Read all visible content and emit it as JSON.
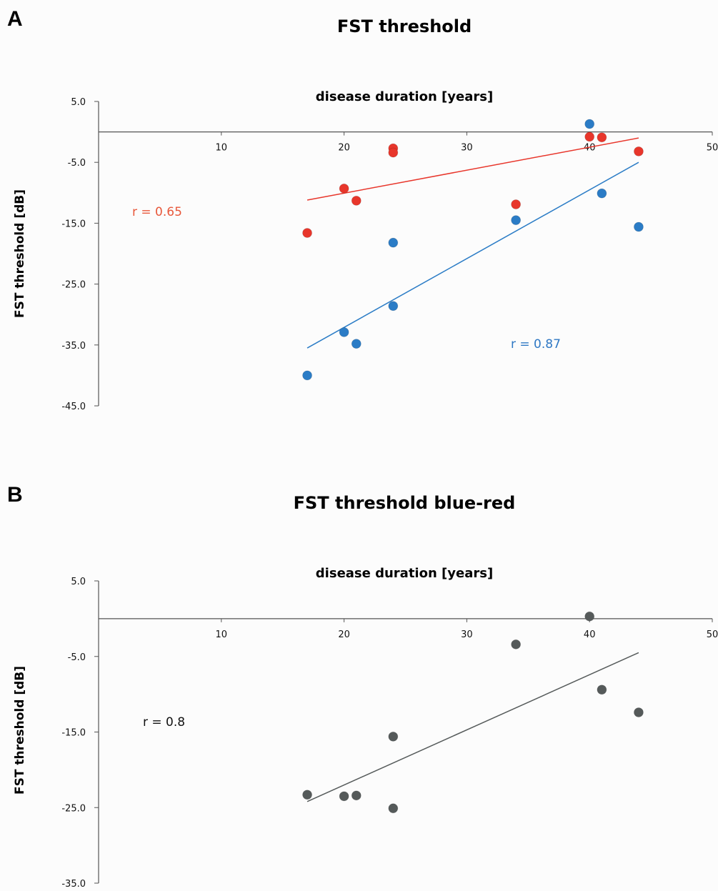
{
  "chart_data": [
    {
      "panel": "A",
      "type": "scatter",
      "title": "FST threshold",
      "xlabel": "disease duration [years]",
      "ylabel": "FST threshold [dB]",
      "xlim": [
        0,
        50
      ],
      "ylim": [
        -45,
        5
      ],
      "xticks": [
        10,
        20,
        30,
        40,
        50
      ],
      "yticks": [
        5,
        -5,
        -15,
        -25,
        -35,
        -45
      ],
      "ytick_labels": [
        "5.0",
        "-5.0",
        "-15.0",
        "-25.0",
        "-35.0",
        "-45.0"
      ],
      "series": [
        {
          "color": "#e8362b",
          "points": [
            [
              17,
              -16.6
            ],
            [
              20,
              -9.3
            ],
            [
              21,
              -11.3
            ],
            [
              24,
              -2.7
            ],
            [
              24,
              -3.4
            ],
            [
              34,
              -11.9
            ],
            [
              40,
              -0.8
            ],
            [
              41,
              -0.9
            ],
            [
              44,
              -3.2
            ]
          ],
          "trend": [
            [
              17,
              -11.2
            ],
            [
              44,
              -1.0
            ]
          ],
          "r_label": "r = 0.65",
          "label_color": "#e8573a"
        },
        {
          "color": "#2b7cc6",
          "points": [
            [
              17,
              -40.0
            ],
            [
              20,
              -32.9
            ],
            [
              21,
              -34.8
            ],
            [
              24,
              -18.2
            ],
            [
              24,
              -28.6
            ],
            [
              34,
              -14.5
            ],
            [
              40,
              1.3
            ],
            [
              41,
              -10.1
            ],
            [
              44,
              -15.6
            ]
          ],
          "trend": [
            [
              17,
              -35.5
            ],
            [
              44,
              -5.0
            ]
          ],
          "r_label": "r = 0.87",
          "label_color": "#2f78c4"
        }
      ]
    },
    {
      "panel": "B",
      "type": "scatter",
      "title": "FST threshold blue-red",
      "xlabel": "disease duration [years]",
      "ylabel": "FST threshold [dB]",
      "xlim": [
        0,
        50
      ],
      "ylim": [
        -35,
        5
      ],
      "xticks": [
        10,
        20,
        30,
        40,
        50
      ],
      "yticks": [
        5,
        -5,
        -15,
        -25,
        -35
      ],
      "ytick_labels": [
        "5.0",
        "-5.0",
        "-15.0",
        "-25.0",
        "-35.0"
      ],
      "series": [
        {
          "color": "#555a5a",
          "points": [
            [
              17,
              -23.3
            ],
            [
              20,
              -23.5
            ],
            [
              21,
              -23.4
            ],
            [
              24,
              -15.6
            ],
            [
              24,
              -25.1
            ],
            [
              34,
              -3.4
            ],
            [
              40,
              0.3
            ],
            [
              41,
              -9.4
            ],
            [
              44,
              -12.4
            ]
          ],
          "trend": [
            [
              17,
              -24.2
            ],
            [
              44,
              -4.5
            ]
          ],
          "r_label": "r = 0.8",
          "label_color": "#111111"
        }
      ]
    }
  ]
}
